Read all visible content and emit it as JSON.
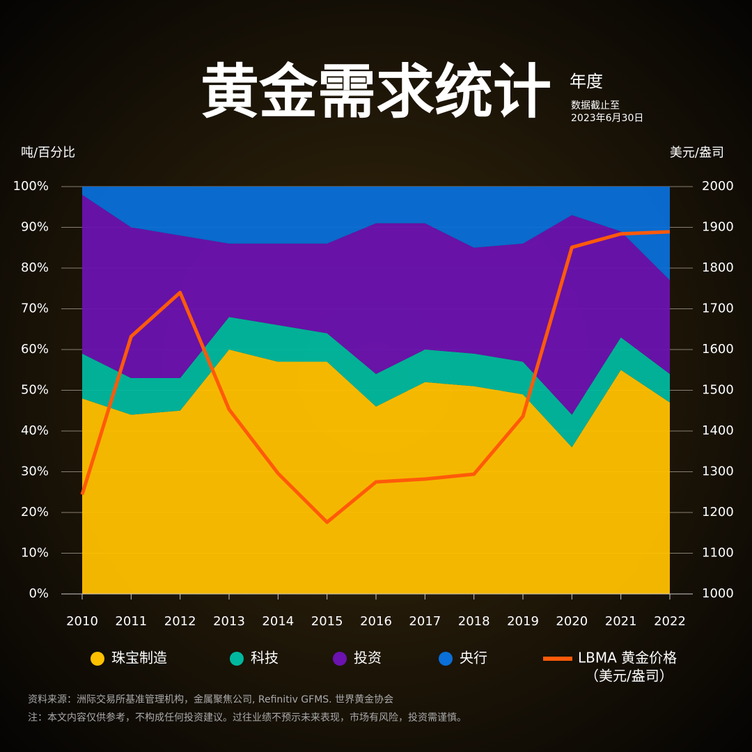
{
  "chart_data": {
    "type": "stacked_area",
    "title": "黄金需求统计",
    "subtitle": "年度",
    "note": [
      "数据截止至",
      "2023年6月30日"
    ],
    "y_label": "吨/百分比",
    "y2_label": "美元/盎司",
    "categories": [
      "2010",
      "2011",
      "2012",
      "2013",
      "2014",
      "2015",
      "2016",
      "2017",
      "2018",
      "2019",
      "2020",
      "2021",
      "2022"
    ],
    "series": [
      {
        "name": "珠宝制造",
        "type": "area",
        "color": "#ffc000",
        "values": [
          48,
          44,
          45,
          60,
          57,
          57,
          46,
          52,
          51,
          49,
          36,
          55,
          47
        ]
      },
      {
        "name": "科技",
        "type": "area",
        "color": "#00b89f",
        "values": [
          11,
          9,
          8,
          8,
          9,
          7,
          8,
          8,
          8,
          8,
          8,
          8,
          7
        ]
      },
      {
        "name": "投资",
        "type": "area",
        "color": "#6b12b0",
        "values": [
          39,
          37,
          35,
          18,
          20,
          22,
          37,
          31,
          26,
          29,
          49,
          26,
          23
        ]
      },
      {
        "name": "央行",
        "type": "area",
        "color": "#0a6fd8",
        "values": [
          2,
          10,
          12,
          14,
          14,
          14,
          9,
          9,
          15,
          14,
          7,
          11,
          23
        ]
      },
      {
        "name": [
          "LBMA 黄金价格",
          "（美元/盎司）"
        ],
        "type": "line",
        "axis": "y2",
        "color": "#ff5a0a",
        "values": [
          1244,
          1632,
          1740,
          1453,
          1296,
          1176,
          1275,
          1282,
          1294,
          1436,
          1851,
          1884,
          1889
        ]
      }
    ],
    "ylim": [
      0,
      100
    ],
    "yticks": [
      {
        "value": 0,
        "label": "0%"
      },
      {
        "value": 10,
        "label": "10%"
      },
      {
        "value": 20,
        "label": "20%"
      },
      {
        "value": 30,
        "label": "30%"
      },
      {
        "value": 40,
        "label": "40%"
      },
      {
        "value": 50,
        "label": "50%"
      },
      {
        "value": 60,
        "label": "60%"
      },
      {
        "value": 70,
        "label": "70%"
      },
      {
        "value": 80,
        "label": "80%"
      },
      {
        "value": 90,
        "label": "90%"
      },
      {
        "value": 100,
        "label": "100%"
      }
    ],
    "y2lim": [
      1000,
      2000
    ],
    "y2ticks": [
      1000,
      1100,
      1200,
      1300,
      1400,
      1500,
      1600,
      1700,
      1800,
      1900,
      2000
    ],
    "grid": true,
    "source": [
      "资料来源：洲际交易所基准管理机构，金属聚焦公司, Refinitiv GFMS. 世界黄金协会",
      "注：本文内容仅供参考，不构成任何投资建议。过往业绩不预示未来表现，市场有风险，投资需谨慎。"
    ]
  }
}
